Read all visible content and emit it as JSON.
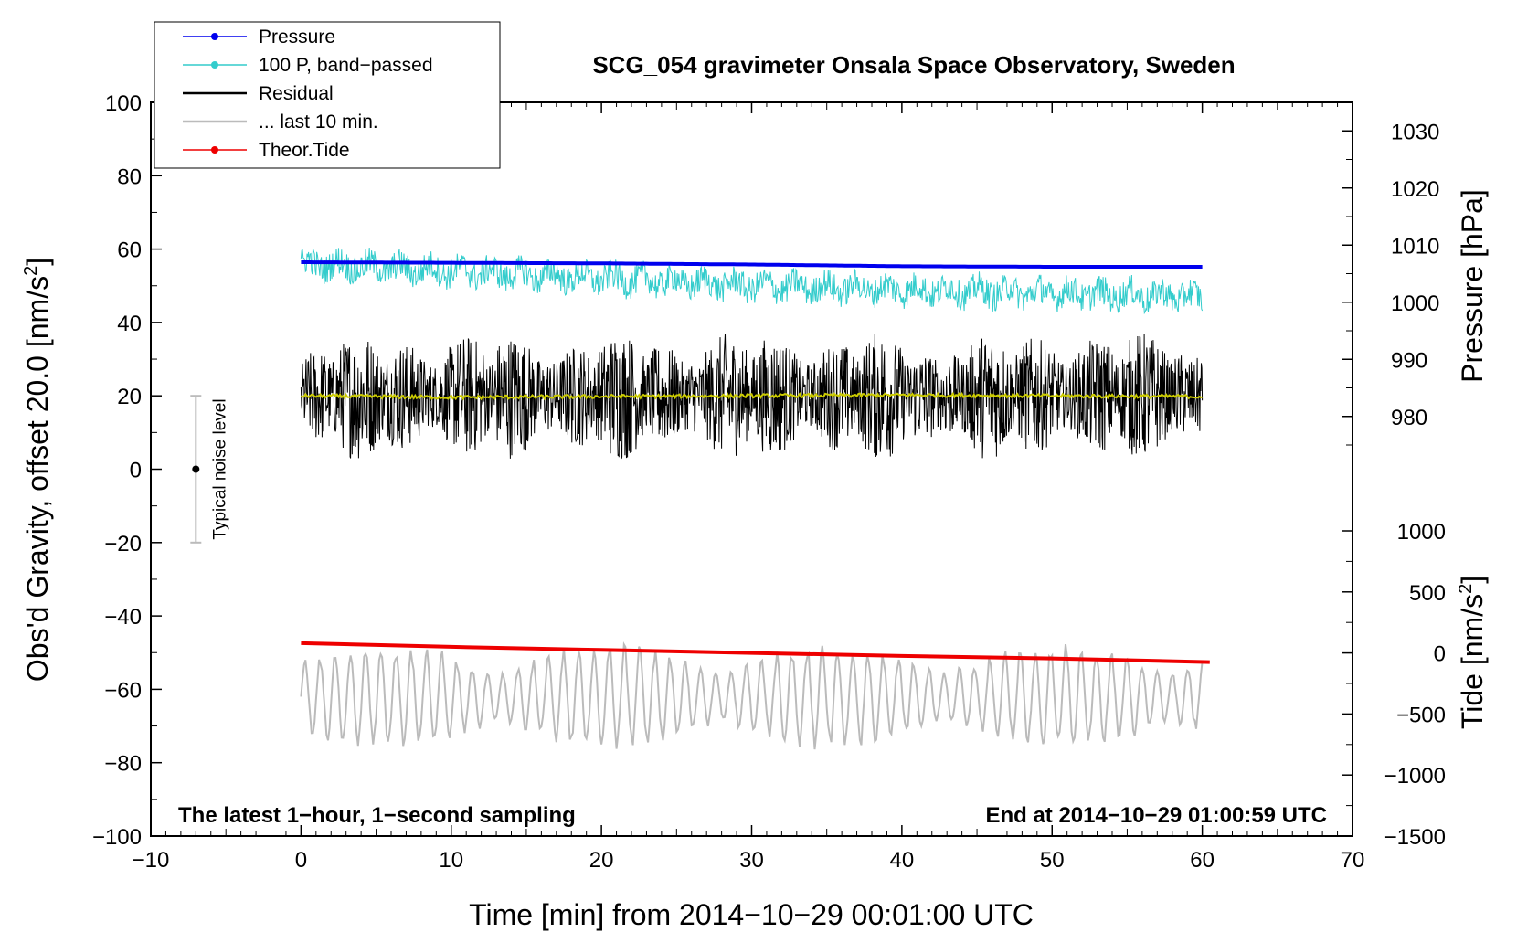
{
  "chart_data": {
    "type": "line",
    "title": "SCG_054 gravimeter Onsala Space Observatory, Sweden",
    "xlabel": "Time [min] from 2014−10−29 00:01:00 UTC",
    "ylabel_main": "Obs'd Gravity, offset 20.0 [nm/s",
    "ylabel_main_sup": "2",
    "ylabel_main_tail": "]",
    "ylabel_pressure": "Pressure [hPa]",
    "ylabel_tide": "Tide [nm/s",
    "ylabel_tide_sup": "2",
    "ylabel_tide_tail": "]",
    "xlim": [
      -10,
      70
    ],
    "ylim": [
      -100,
      100
    ],
    "pressure_lim": [
      975,
      1035
    ],
    "tide_lim": [
      -1500,
      1000
    ],
    "x_ticks": [
      "−10",
      "0",
      "10",
      "20",
      "30",
      "40",
      "50",
      "60",
      "70"
    ],
    "y_ticks": [
      "−100",
      "−80",
      "−60",
      "−40",
      "−20",
      "0",
      "20",
      "40",
      "60",
      "80",
      "100"
    ],
    "pressure_ticks": [
      "980",
      "990",
      "1000",
      "1010",
      "1020",
      "1030"
    ],
    "tide_ticks": [
      "−1500",
      "−1000",
      "−500",
      "0",
      "500",
      "1000"
    ],
    "footer_left": "The latest 1−hour, 1−second sampling",
    "footer_right": "End at 2014−10−29 01:00:59 UTC",
    "noise_label": "Typical noise level",
    "noise_bar": {
      "x": -7,
      "center": 0,
      "low": -20,
      "high": 20
    },
    "legend": [
      {
        "label": "Pressure",
        "color": "#0000ee",
        "marker": true
      },
      {
        "label": "100 P, band−passed",
        "color": "#33cccc",
        "marker": true
      },
      {
        "label": "Residual",
        "color": "#000000",
        "marker": false
      },
      {
        "label": "... last 10 min.",
        "color": "#bbbbbb",
        "marker": false
      },
      {
        "label": "Theor.Tide",
        "color": "#ee0000",
        "marker": true
      }
    ],
    "series": [
      {
        "name": "Pressure",
        "axis": "pressure",
        "x": [
          0,
          10,
          20,
          30,
          40,
          50,
          60
        ],
        "values": [
          1007.0,
          1006.9,
          1006.8,
          1006.6,
          1006.3,
          1006.2,
          1006.2
        ]
      },
      {
        "name": "100 P, band−passed",
        "axis": "main",
        "x": [
          0,
          10,
          20,
          30,
          40,
          50,
          60
        ],
        "mean": [
          56,
          54,
          52,
          50,
          49,
          48,
          47
        ],
        "amplitude": 4
      },
      {
        "name": "Residual",
        "axis": "main",
        "x": [
          0,
          10,
          20,
          30,
          40,
          50,
          60
        ],
        "mean": [
          20,
          20,
          20,
          20,
          20,
          20,
          20
        ],
        "amplitude": 18
      },
      {
        "name": "Residual mean",
        "axis": "main",
        "color": "#cccc00",
        "x": [
          0,
          10,
          20,
          30,
          40,
          50,
          60
        ],
        "values": [
          20,
          19.6,
          19.8,
          20,
          20.2,
          20,
          19.8
        ]
      },
      {
        "name": "... last 10 min.",
        "axis": "main",
        "x": [
          0,
          10,
          20,
          30,
          40,
          50,
          60
        ],
        "mean": [
          -62,
          -62,
          -62,
          -62,
          -62,
          -62,
          -62
        ],
        "amplitude": 15
      },
      {
        "name": "Theor.Tide",
        "axis": "tide",
        "x": [
          0,
          10,
          20,
          30,
          40,
          50,
          60.5
        ],
        "values": [
          80,
          50,
          25,
          0,
          -25,
          -45,
          -75
        ]
      }
    ]
  }
}
